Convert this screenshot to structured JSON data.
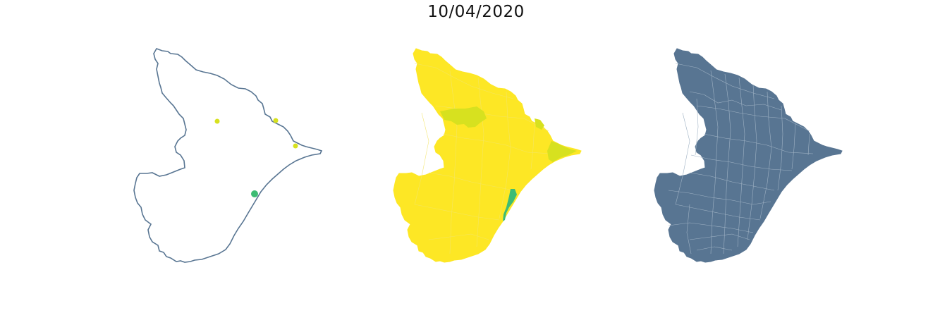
{
  "figure": {
    "title": "10/04/2020"
  },
  "colors": {
    "outline": "#587592",
    "base_yellow": "#fde725",
    "mid_yellow": "#d7e11f",
    "green": "#3dbc74",
    "filled": "#587592",
    "borders": "#8ea3b8"
  },
  "maps": [
    {
      "kind": "outline-with-points",
      "points": [
        {
          "level": "low"
        },
        {
          "level": "low"
        },
        {
          "level": "low"
        },
        {
          "level": "high"
        }
      ]
    },
    {
      "kind": "choropleth",
      "highlighted_regions": [
        {
          "level": "mid"
        },
        {
          "level": "mid"
        },
        {
          "level": "mid"
        },
        {
          "level": "high"
        }
      ]
    },
    {
      "kind": "municipal-borders"
    }
  ]
}
